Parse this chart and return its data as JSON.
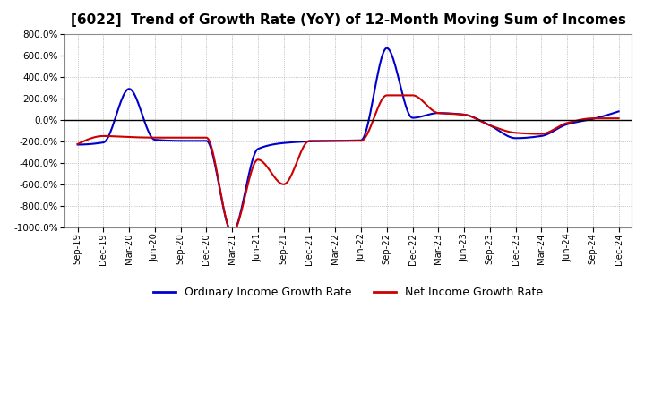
{
  "title": "[6022]  Trend of Growth Rate (YoY) of 12-Month Moving Sum of Incomes",
  "title_fontsize": 11,
  "background_color": "#ffffff",
  "grid_color": "#9999aa",
  "ylim": [
    -1000,
    800
  ],
  "yticks": [
    -1000,
    -800,
    -600,
    -400,
    -200,
    0,
    200,
    400,
    600,
    800
  ],
  "legend_labels": [
    "Ordinary Income Growth Rate",
    "Net Income Growth Rate"
  ],
  "legend_colors": [
    "#0000cc",
    "#cc0000"
  ],
  "x_labels": [
    "Sep-19",
    "Dec-19",
    "Mar-20",
    "Jun-20",
    "Sep-20",
    "Dec-20",
    "Mar-21",
    "Jun-21",
    "Sep-21",
    "Dec-21",
    "Mar-22",
    "Jun-22",
    "Sep-22",
    "Dec-22",
    "Mar-23",
    "Jun-23",
    "Sep-23",
    "Dec-23",
    "Mar-24",
    "Jun-24",
    "Sep-24",
    "Dec-24"
  ],
  "ordinary_income": [
    -230,
    -210,
    290,
    -185,
    -195,
    -195,
    -1050,
    -270,
    -215,
    -200,
    -195,
    -190,
    670,
    20,
    65,
    50,
    -50,
    -170,
    -150,
    -40,
    10,
    80
  ],
  "net_income": [
    -225,
    -150,
    -160,
    -165,
    -165,
    -165,
    -1050,
    -370,
    -600,
    -195,
    -195,
    -195,
    230,
    230,
    65,
    50,
    -50,
    -120,
    -130,
    -28,
    15,
    15
  ]
}
